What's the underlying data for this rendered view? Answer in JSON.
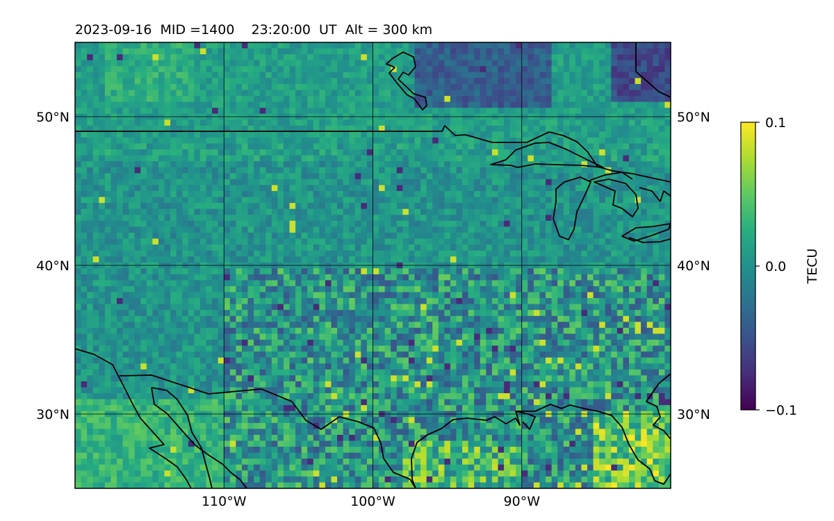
{
  "chart_data": {
    "type": "heatmap",
    "title": "2023-09-16  MID =1400    23:20:00  UT  Alt = 300 km",
    "colorbar": {
      "label": "TECU",
      "colormap": "viridis",
      "range": [
        -0.1,
        0.1
      ],
      "ticks": [
        {
          "value": 0.1,
          "label": "0.1"
        },
        {
          "value": 0.0,
          "label": "0.0"
        },
        {
          "value": -0.1,
          "label": "−0.1"
        }
      ]
    },
    "map": {
      "lon_range": [
        -120,
        -80
      ],
      "lat_range": [
        25,
        55
      ],
      "gridlines": true,
      "coastlines_and_borders": true
    },
    "lon_ticks": [
      {
        "value": -110,
        "label": "110°W"
      },
      {
        "value": -100,
        "label": "100°W"
      },
      {
        "value": -90,
        "label": "90°W"
      }
    ],
    "lat_ticks": [
      {
        "value": 30,
        "label": "30°N"
      },
      {
        "value": 40,
        "label": "40°N"
      },
      {
        "value": 50,
        "label": "50°N"
      }
    ],
    "regions": [
      {
        "name": "north-background",
        "lon": [
          -120,
          -80
        ],
        "lat": [
          47,
          55
        ],
        "value": 0.012
      },
      {
        "name": "plains-background",
        "lon": [
          -120,
          -80
        ],
        "lat": [
          25,
          47
        ],
        "value": 0.004
      },
      {
        "name": "hudson-low",
        "lon": [
          -97,
          -88
        ],
        "lat": [
          50.5,
          55
        ],
        "value": -0.04
      },
      {
        "name": "northeast-low",
        "lon": [
          -84,
          -80
        ],
        "lat": [
          51,
          55
        ],
        "value": -0.055
      },
      {
        "name": "northwest-high",
        "lon": [
          -118,
          -112
        ],
        "lat": [
          51,
          55
        ],
        "value": 0.025
      },
      {
        "name": "southwest-high",
        "lon": [
          -120,
          -110
        ],
        "lat": [
          25,
          31
        ],
        "value": 0.03
      },
      {
        "name": "south-high",
        "lon": [
          -98,
          -90
        ],
        "lat": [
          25,
          28
        ],
        "value": 0.035
      },
      {
        "name": "southeast-mixed",
        "lon": [
          -85,
          -80
        ],
        "lat": [
          25,
          30
        ],
        "value": 0.05
      }
    ]
  }
}
